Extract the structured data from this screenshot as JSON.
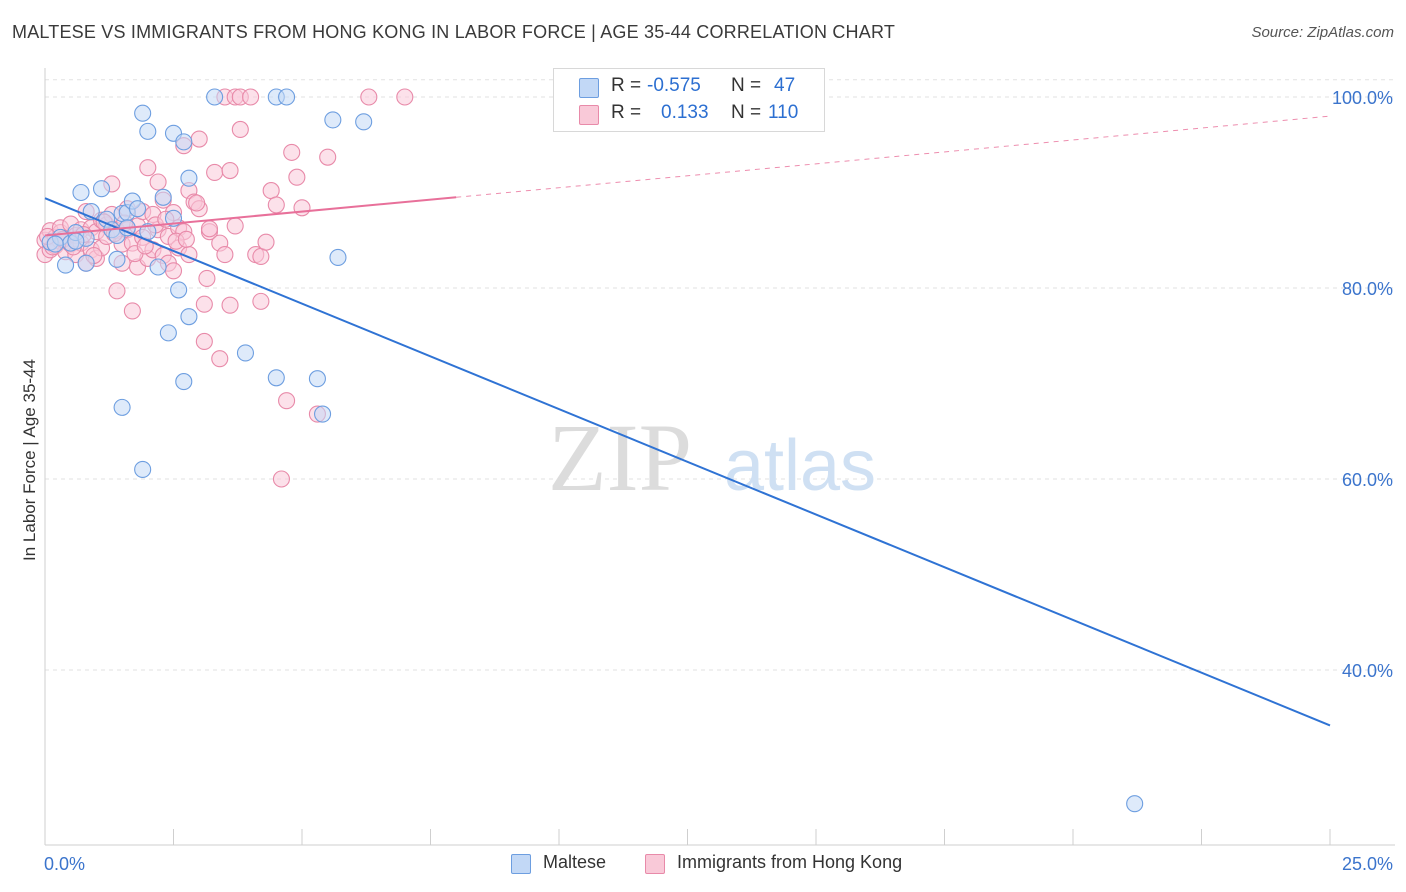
{
  "title": "MALTESE VS IMMIGRANTS FROM HONG KONG IN LABOR FORCE | AGE 35-44 CORRELATION CHART",
  "source": "Source: ZipAtlas.com",
  "watermark": {
    "zip": "ZIP",
    "atlas": "atlas"
  },
  "stats": {
    "r_label": "R =",
    "n_label": "N =",
    "rows": [
      {
        "r": "-0.575",
        "n": "47",
        "fill": "#c2d8f6",
        "stroke": "#6d9ee0"
      },
      {
        "r": "0.133",
        "n": "110",
        "fill": "#f9c9d8",
        "stroke": "#e88aa9"
      }
    ]
  },
  "legend": [
    {
      "label": "Maltese",
      "fill": "#c2d8f6",
      "stroke": "#6d9ee0"
    },
    {
      "label": "Immigrants from Hong Kong",
      "fill": "#f9c9d8",
      "stroke": "#e88aa9"
    }
  ],
  "chart_data": {
    "type": "scatter",
    "xlabel": "",
    "ylabel": "In Labor Force | Age 35-44",
    "xlim": [
      0,
      25
    ],
    "ylim": [
      20,
      103
    ],
    "x_tick_labels": [
      "0.0%",
      "25.0%"
    ],
    "y_ticks": [
      {
        "value": 100,
        "label": "100.0%"
      },
      {
        "value": 80,
        "label": "80.0%"
      },
      {
        "value": 60,
        "label": "60.0%"
      },
      {
        "value": 40,
        "label": "40.0%"
      }
    ],
    "series": [
      {
        "name": "Maltese",
        "color": "#2f73d4",
        "fill": "#c2d8f6",
        "points": [
          [
            0.1,
            84.8
          ],
          [
            0.3,
            85.3
          ],
          [
            0.4,
            82.4
          ],
          [
            0.5,
            84.7
          ],
          [
            0.6,
            85.8
          ],
          [
            0.7,
            90.0
          ],
          [
            0.8,
            85.2
          ],
          [
            0.8,
            82.6
          ],
          [
            0.9,
            88.0
          ],
          [
            1.1,
            90.4
          ],
          [
            1.2,
            87.2
          ],
          [
            1.3,
            86.1
          ],
          [
            1.4,
            85.5
          ],
          [
            1.4,
            83.0
          ],
          [
            1.5,
            87.8
          ],
          [
            1.5,
            67.5
          ],
          [
            1.6,
            87.9
          ],
          [
            1.6,
            86.3
          ],
          [
            1.7,
            89.1
          ],
          [
            1.8,
            88.3
          ],
          [
            1.9,
            61.0
          ],
          [
            1.9,
            98.3
          ],
          [
            2.0,
            85.9
          ],
          [
            2.0,
            96.4
          ],
          [
            2.2,
            82.2
          ],
          [
            2.3,
            89.5
          ],
          [
            2.4,
            75.3
          ],
          [
            2.5,
            87.3
          ],
          [
            2.5,
            96.2
          ],
          [
            2.6,
            79.8
          ],
          [
            2.7,
            70.2
          ],
          [
            2.7,
            95.3
          ],
          [
            2.8,
            91.5
          ],
          [
            2.8,
            77.0
          ],
          [
            3.3,
            100.0
          ],
          [
            3.9,
            73.2
          ],
          [
            4.5,
            100.0
          ],
          [
            4.5,
            70.6
          ],
          [
            4.7,
            100.0
          ],
          [
            5.3,
            70.5
          ],
          [
            5.4,
            66.8
          ],
          [
            5.6,
            97.6
          ],
          [
            5.7,
            83.2
          ],
          [
            6.2,
            97.4
          ],
          [
            21.2,
            26.0
          ],
          [
            0.2,
            84.6
          ],
          [
            0.6,
            84.9
          ]
        ],
        "trend": {
          "x1": 0,
          "y1": 89.4,
          "x2": 25,
          "y2": 34.2
        }
      },
      {
        "name": "Immigrants from Hong Kong",
        "color": "#e8709a",
        "fill": "#f9c9d8",
        "points": [
          [
            0.0,
            85.0
          ],
          [
            0.0,
            83.5
          ],
          [
            0.1,
            86.0
          ],
          [
            0.1,
            84.0
          ],
          [
            0.2,
            85.3
          ],
          [
            0.2,
            84.4
          ],
          [
            0.3,
            85.8
          ],
          [
            0.3,
            86.3
          ],
          [
            0.3,
            84.9
          ],
          [
            0.4,
            85.2
          ],
          [
            0.4,
            83.8
          ],
          [
            0.5,
            84.6
          ],
          [
            0.5,
            86.7
          ],
          [
            0.6,
            85.5
          ],
          [
            0.6,
            83.5
          ],
          [
            0.7,
            84.7
          ],
          [
            0.7,
            86.1
          ],
          [
            0.8,
            88.0
          ],
          [
            0.8,
            82.6
          ],
          [
            0.9,
            86.3
          ],
          [
            0.9,
            84.0
          ],
          [
            1.0,
            85.9
          ],
          [
            1.0,
            83.1
          ],
          [
            1.1,
            87.1
          ],
          [
            1.1,
            84.2
          ],
          [
            1.2,
            86.6
          ],
          [
            1.2,
            85.4
          ],
          [
            1.3,
            87.7
          ],
          [
            1.3,
            90.9
          ],
          [
            1.4,
            79.7
          ],
          [
            1.4,
            86.0
          ],
          [
            1.5,
            84.6
          ],
          [
            1.5,
            82.6
          ],
          [
            1.6,
            86.1
          ],
          [
            1.6,
            88.3
          ],
          [
            1.7,
            84.7
          ],
          [
            1.7,
            77.6
          ],
          [
            1.8,
            86.5
          ],
          [
            1.8,
            82.2
          ],
          [
            1.9,
            88.0
          ],
          [
            1.9,
            85.3
          ],
          [
            2.0,
            83.1
          ],
          [
            2.0,
            92.6
          ],
          [
            2.1,
            87.7
          ],
          [
            2.1,
            84.0
          ],
          [
            2.2,
            91.1
          ],
          [
            2.2,
            86.1
          ],
          [
            2.3,
            83.4
          ],
          [
            2.3,
            89.2
          ],
          [
            2.4,
            82.6
          ],
          [
            2.4,
            85.4
          ],
          [
            2.5,
            87.9
          ],
          [
            2.5,
            81.8
          ],
          [
            2.6,
            86.3
          ],
          [
            2.6,
            84.2
          ],
          [
            2.7,
            94.9
          ],
          [
            2.7,
            85.9
          ],
          [
            2.8,
            90.2
          ],
          [
            2.8,
            83.5
          ],
          [
            2.9,
            89.0
          ],
          [
            3.0,
            95.6
          ],
          [
            3.0,
            88.3
          ],
          [
            3.1,
            78.3
          ],
          [
            3.1,
            74.4
          ],
          [
            3.2,
            85.9
          ],
          [
            3.2,
            86.2
          ],
          [
            3.3,
            92.1
          ],
          [
            3.4,
            72.6
          ],
          [
            3.4,
            84.7
          ],
          [
            3.5,
            83.5
          ],
          [
            3.5,
            100.0
          ],
          [
            3.6,
            92.3
          ],
          [
            3.6,
            78.2
          ],
          [
            3.7,
            86.5
          ],
          [
            3.7,
            100.0
          ],
          [
            3.8,
            100.0
          ],
          [
            3.8,
            96.6
          ],
          [
            4.0,
            100.0
          ],
          [
            4.1,
            83.5
          ],
          [
            4.2,
            78.6
          ],
          [
            4.2,
            83.3
          ],
          [
            4.3,
            84.8
          ],
          [
            4.4,
            90.2
          ],
          [
            4.5,
            88.7
          ],
          [
            4.6,
            60.0
          ],
          [
            4.7,
            68.2
          ],
          [
            4.8,
            94.2
          ],
          [
            4.9,
            91.6
          ],
          [
            5.0,
            88.4
          ],
          [
            5.3,
            66.8
          ],
          [
            5.5,
            93.7
          ],
          [
            6.3,
            100.0
          ],
          [
            7.0,
            100.0
          ],
          [
            0.15,
            84.3
          ],
          [
            0.35,
            85.1
          ],
          [
            0.55,
            84.3
          ],
          [
            0.75,
            85.6
          ],
          [
            0.95,
            83.4
          ],
          [
            1.15,
            86.9
          ],
          [
            1.35,
            85.7
          ],
          [
            1.55,
            86.8
          ],
          [
            1.75,
            83.6
          ],
          [
            1.95,
            84.4
          ],
          [
            2.15,
            86.6
          ],
          [
            2.35,
            87.2
          ],
          [
            2.55,
            84.9
          ],
          [
            2.75,
            85.1
          ],
          [
            2.95,
            88.9
          ],
          [
            3.15,
            81.0
          ],
          [
            0.05,
            85.4
          ]
        ],
        "trend": {
          "x1": 0,
          "y1": 85.5,
          "x2": 25,
          "y2": 98.0,
          "solid_to_x": 8.0
        }
      }
    ]
  }
}
